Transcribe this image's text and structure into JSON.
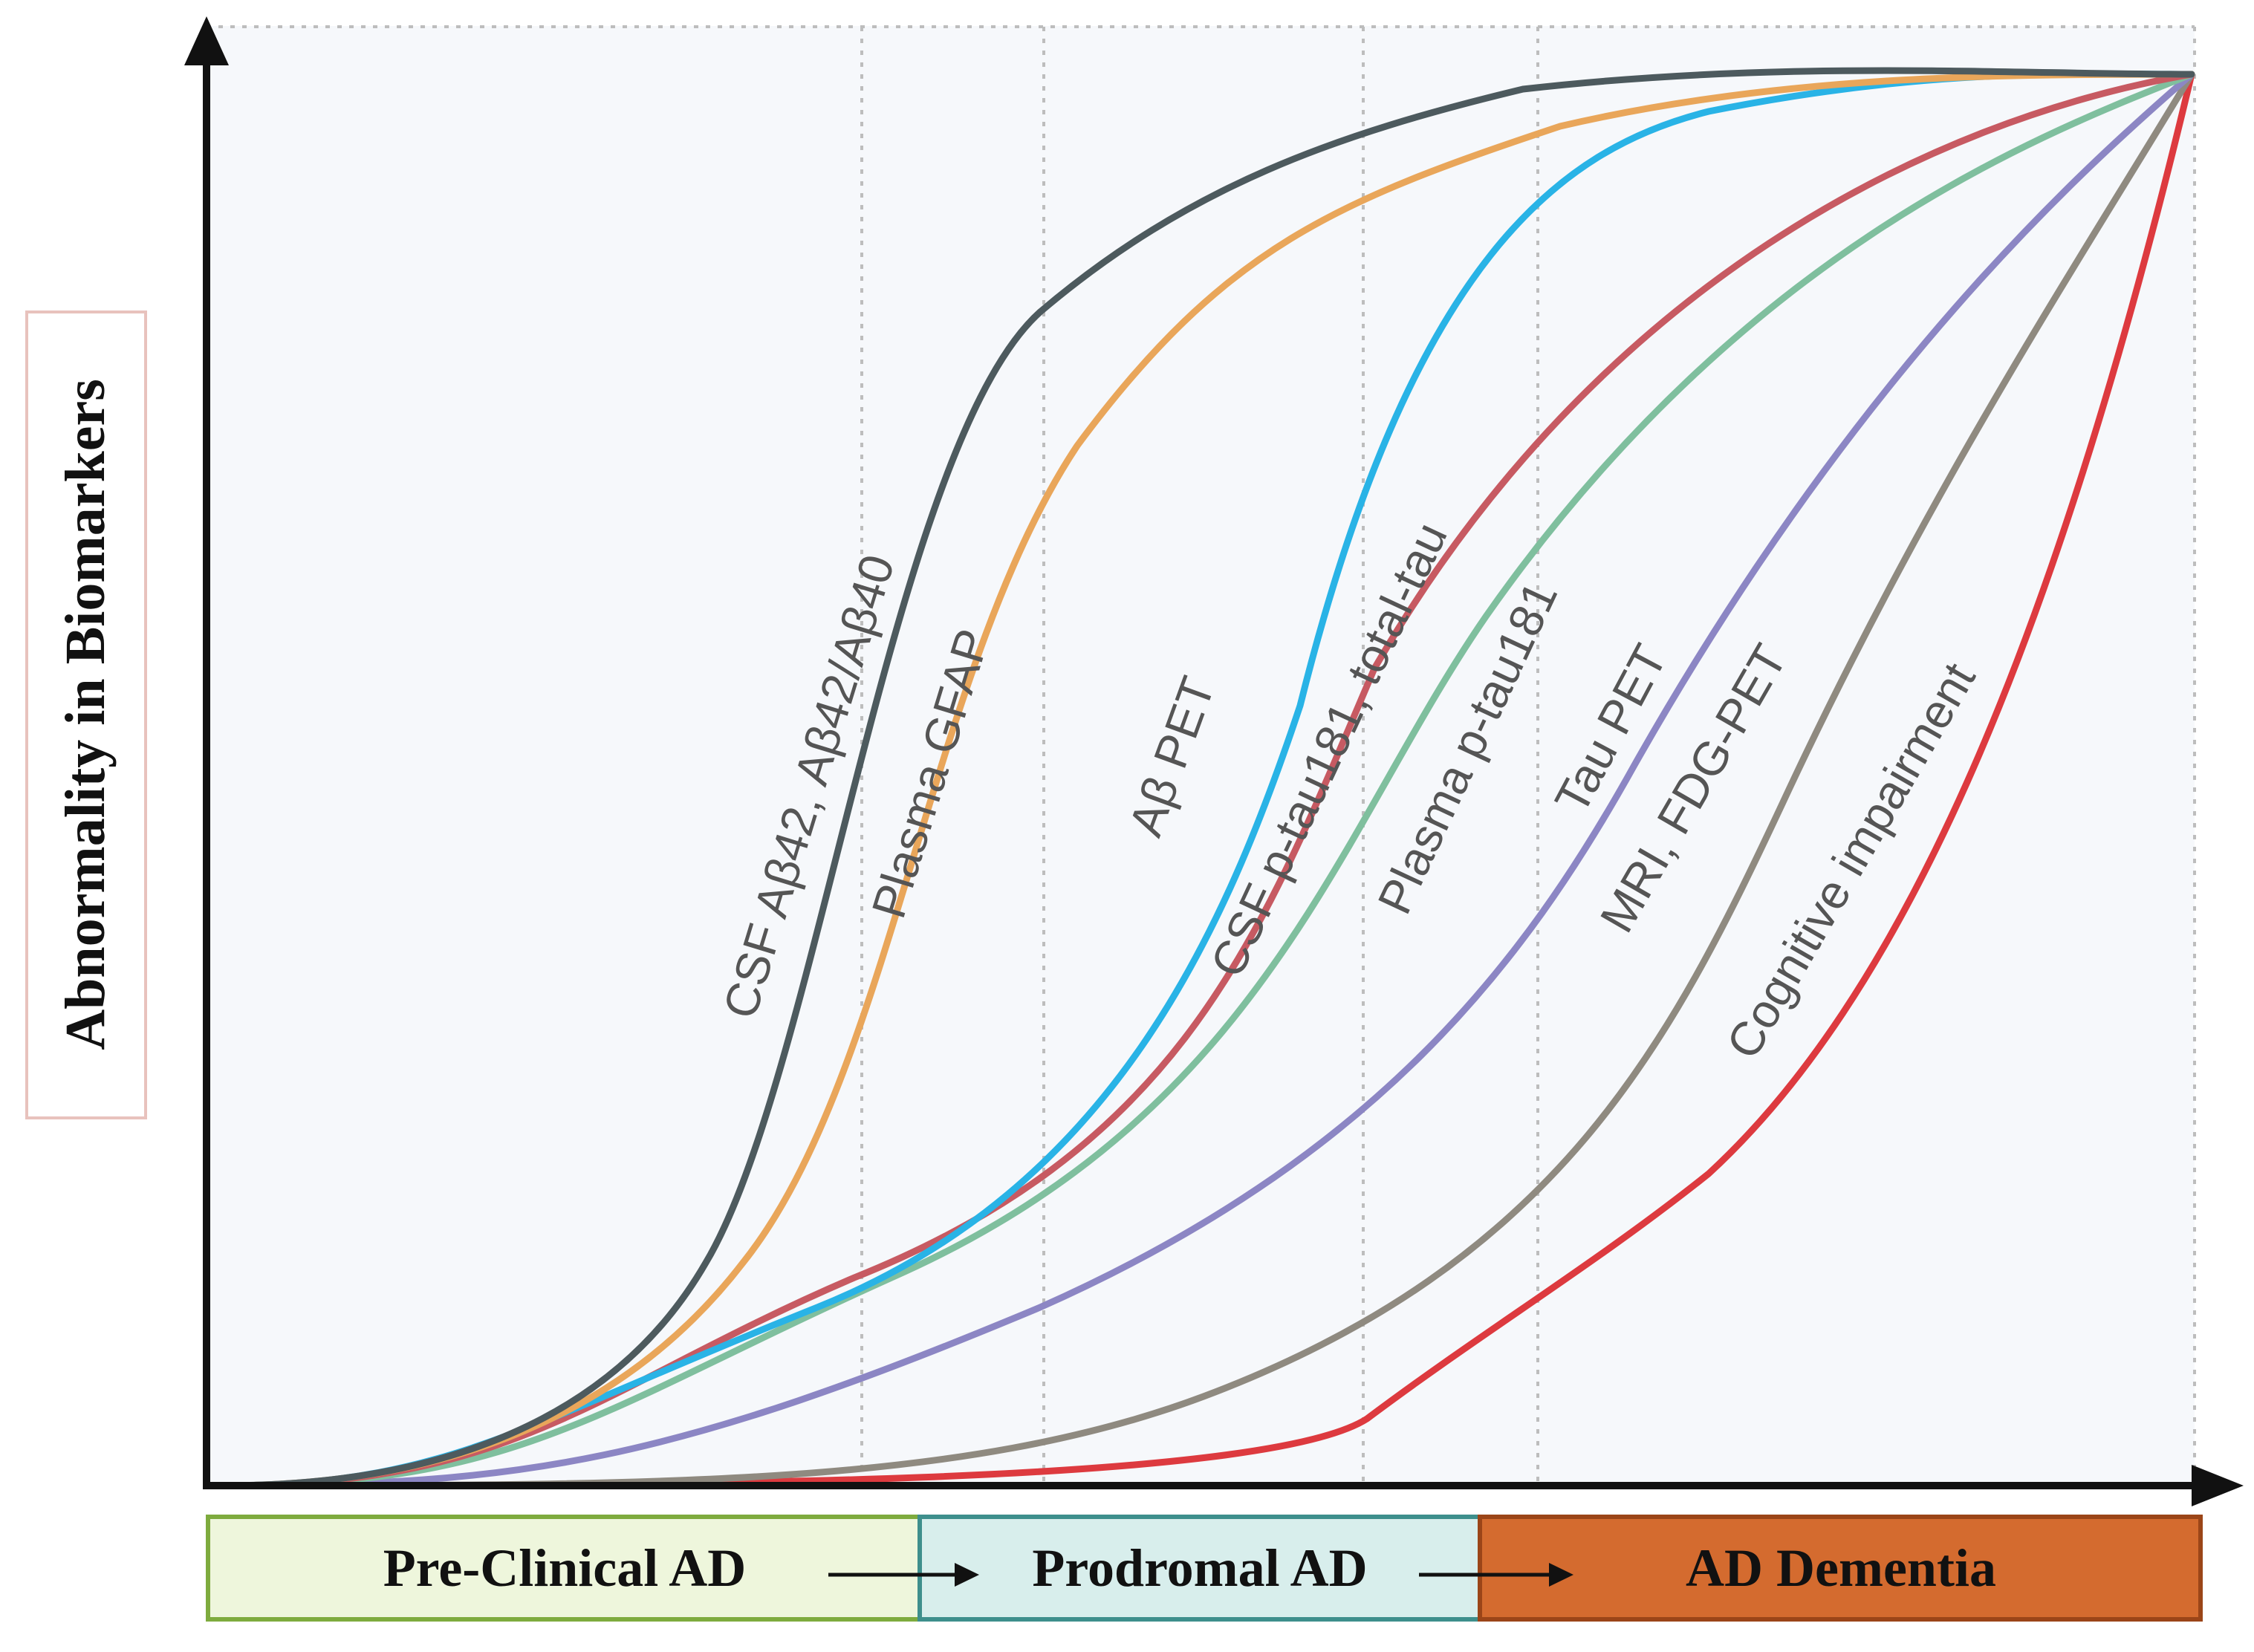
{
  "y_axis_label": "Abnormality in Biomarkers",
  "curves": [
    {
      "label": "CSF Aβ42, Aβ42/Aβ40",
      "color": "#4d5a5e"
    },
    {
      "label": "Plasma GFAP",
      "color": "#e9a65a"
    },
    {
      "label": "Aβ PET",
      "color": "#29b3e6"
    },
    {
      "label": "CSF p-tau181, total-tau",
      "color": "#c75a62"
    },
    {
      "label": "Plasma p-tau181",
      "color": "#7fbf9e"
    },
    {
      "label": "Tau PET",
      "color": "#8c86c4"
    },
    {
      "label": "MRI, FDG-PET",
      "color": "#8f8a80"
    },
    {
      "label": "Cognitive impairment",
      "color": "#dd3a3f"
    }
  ],
  "stages": [
    {
      "label": "Pre-Clinical AD",
      "fill": "#eef6dc",
      "border": "#7eab3e"
    },
    {
      "label": "Prodromal AD",
      "fill": "#d8eeec",
      "border": "#3e8f8c"
    },
    {
      "label": "AD Dementia",
      "fill": "#d46b2f",
      "border": "#9b4518"
    }
  ]
}
